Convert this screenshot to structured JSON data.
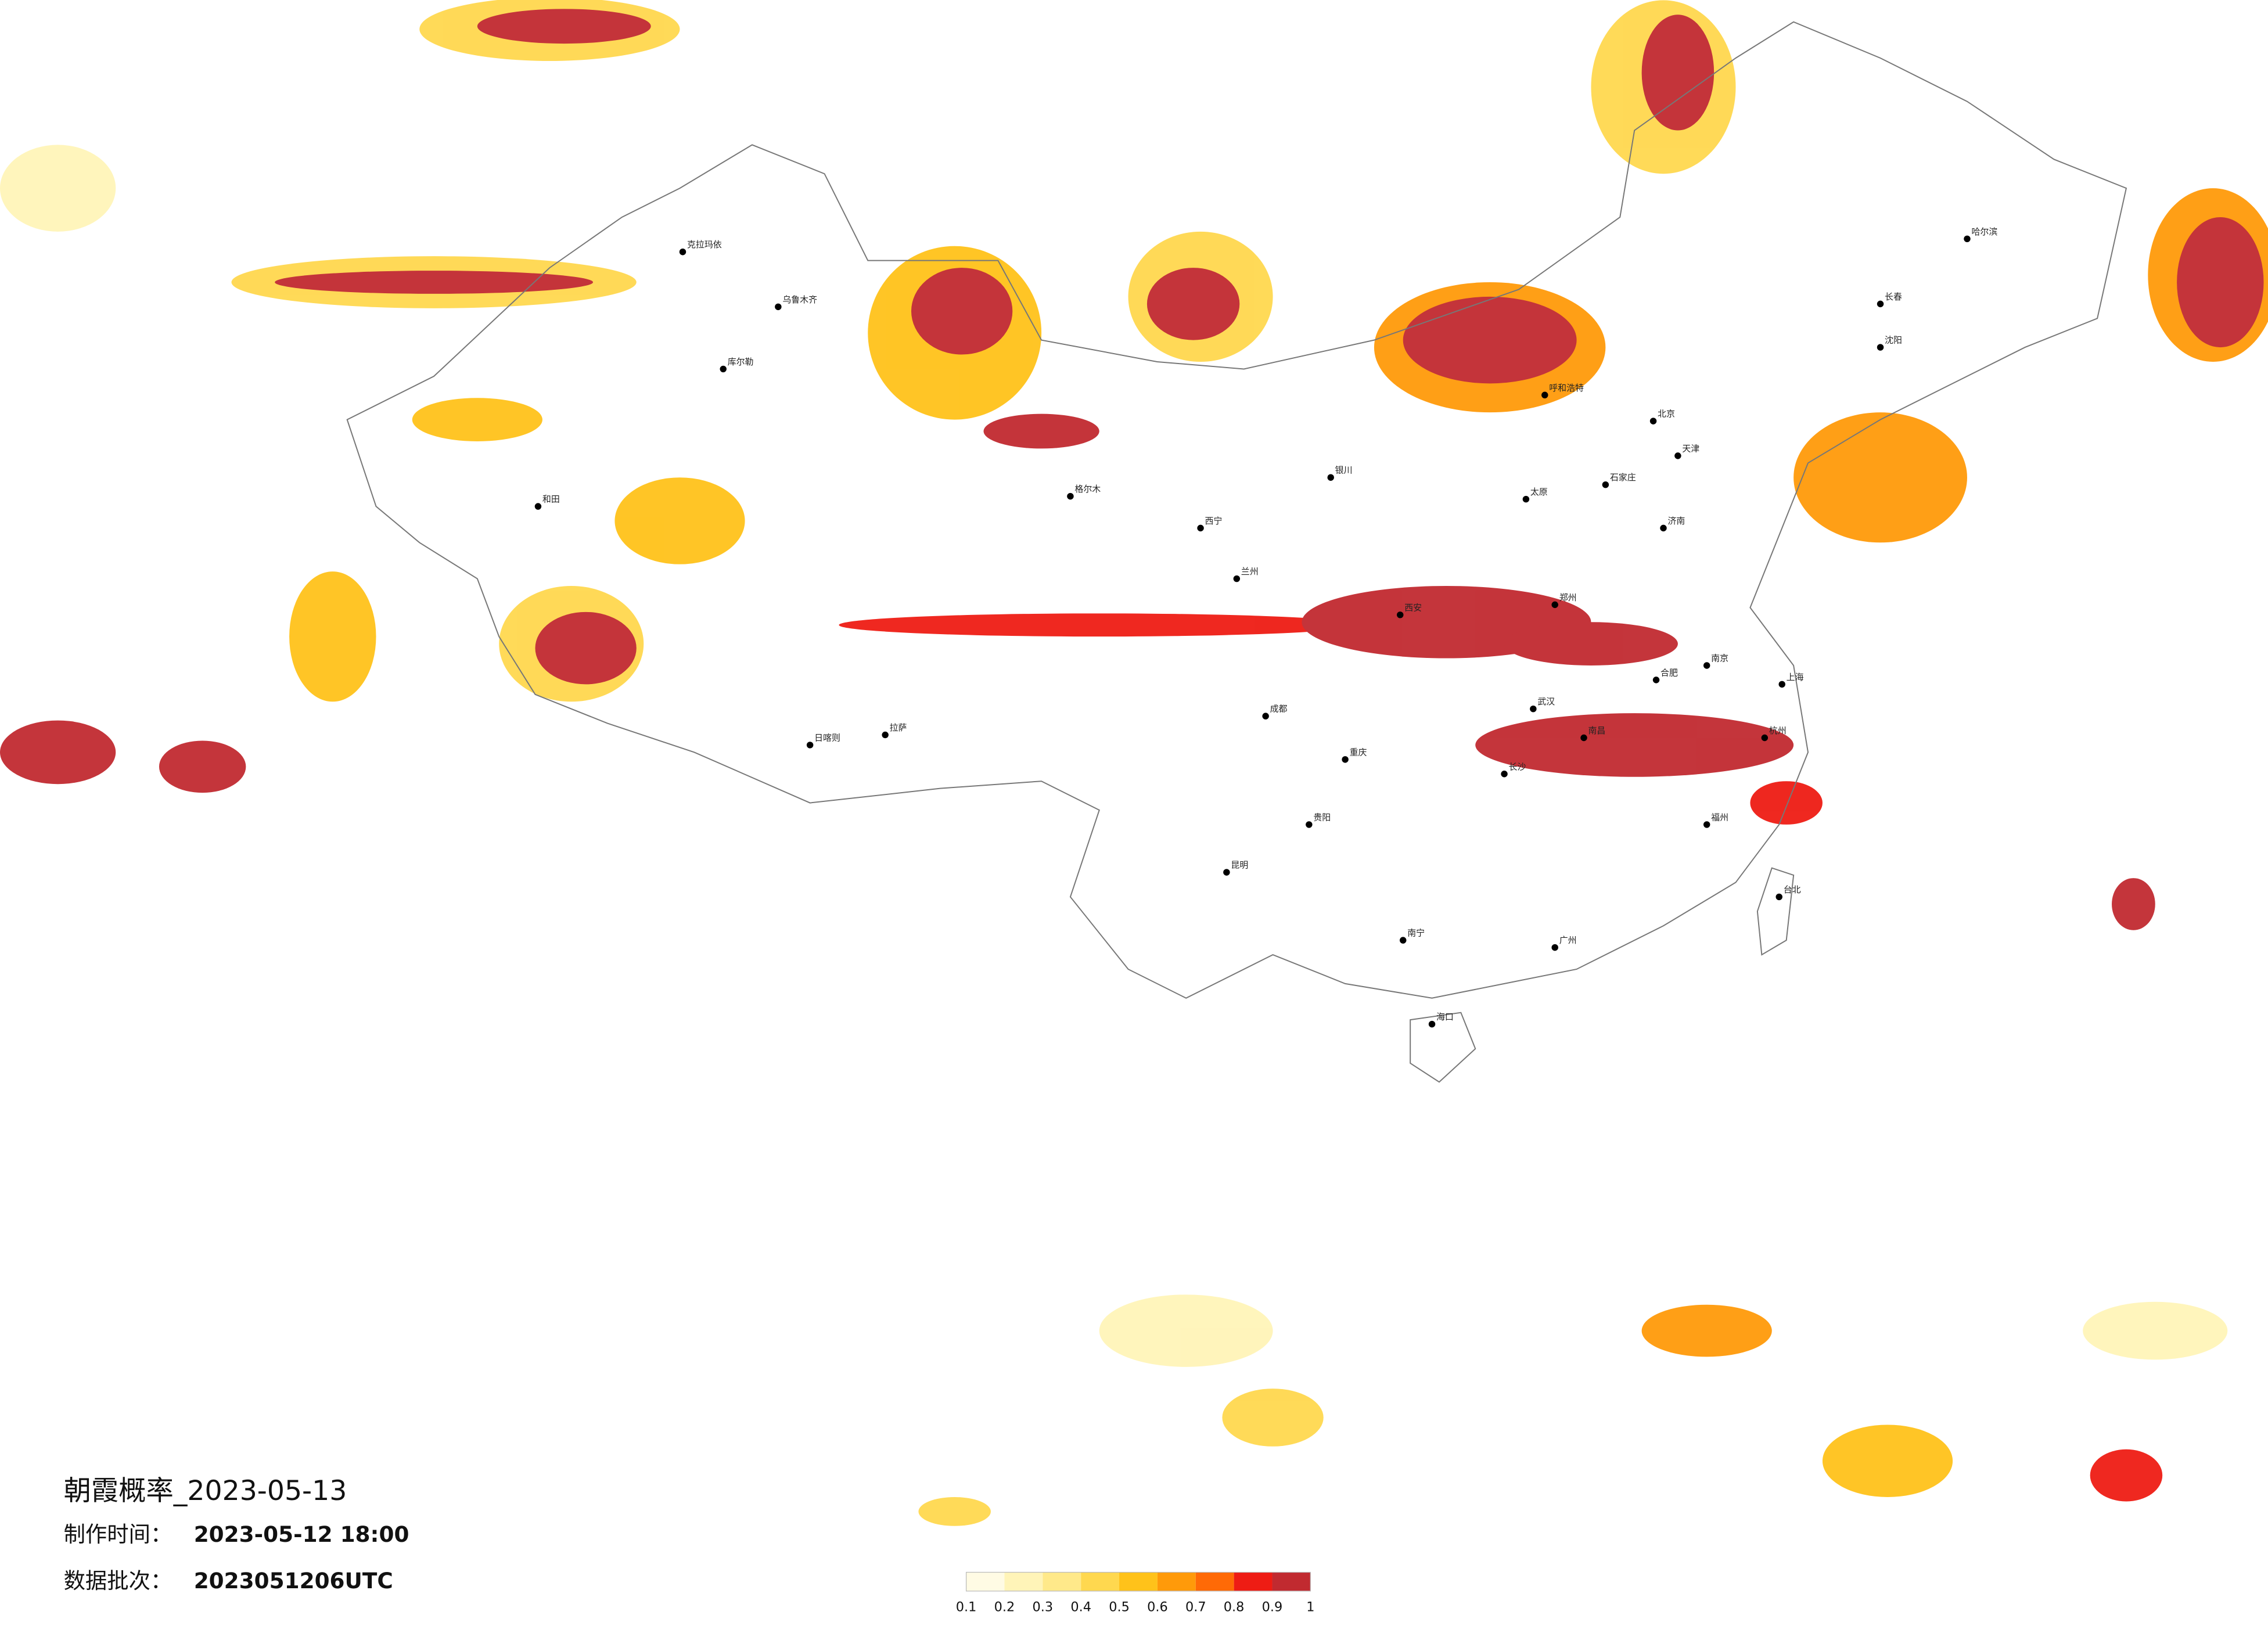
{
  "map": {
    "title": "朝霞概率_2023-05-13",
    "info": [
      {
        "label": "制作时间：",
        "value": "2023-05-12 18:00"
      },
      {
        "label": "数据批次：",
        "value": "2023051206UTC"
      }
    ],
    "cities": [
      "乌鲁木齐",
      "克拉玛依",
      "库尔勒",
      "和田",
      "拉萨",
      "日喀则",
      "格尔木",
      "西宁",
      "兰州",
      "银川",
      "呼和浩特",
      "北京",
      "天津",
      "石家庄",
      "太原",
      "济南",
      "西安",
      "郑州",
      "武汉",
      "合肥",
      "南京",
      "上海",
      "杭州",
      "成都",
      "重庆",
      "贵阳",
      "昆明",
      "长沙",
      "南昌",
      "福州",
      "广州",
      "南宁",
      "海口",
      "沈阳",
      "长春",
      "哈尔滨",
      "台北"
    ],
    "colorbar": {
      "ticks": [
        0.1,
        0.2,
        0.3,
        0.4,
        0.5,
        0.6,
        0.7,
        0.8,
        0.9,
        1
      ],
      "colors": [
        "#fffbe4",
        "#fff4b8",
        "#ffe98a",
        "#ffd84f",
        "#ffc21a",
        "#ff9a0a",
        "#ff6a06",
        "#ee1c14",
        "#c12a30"
      ]
    }
  }
}
